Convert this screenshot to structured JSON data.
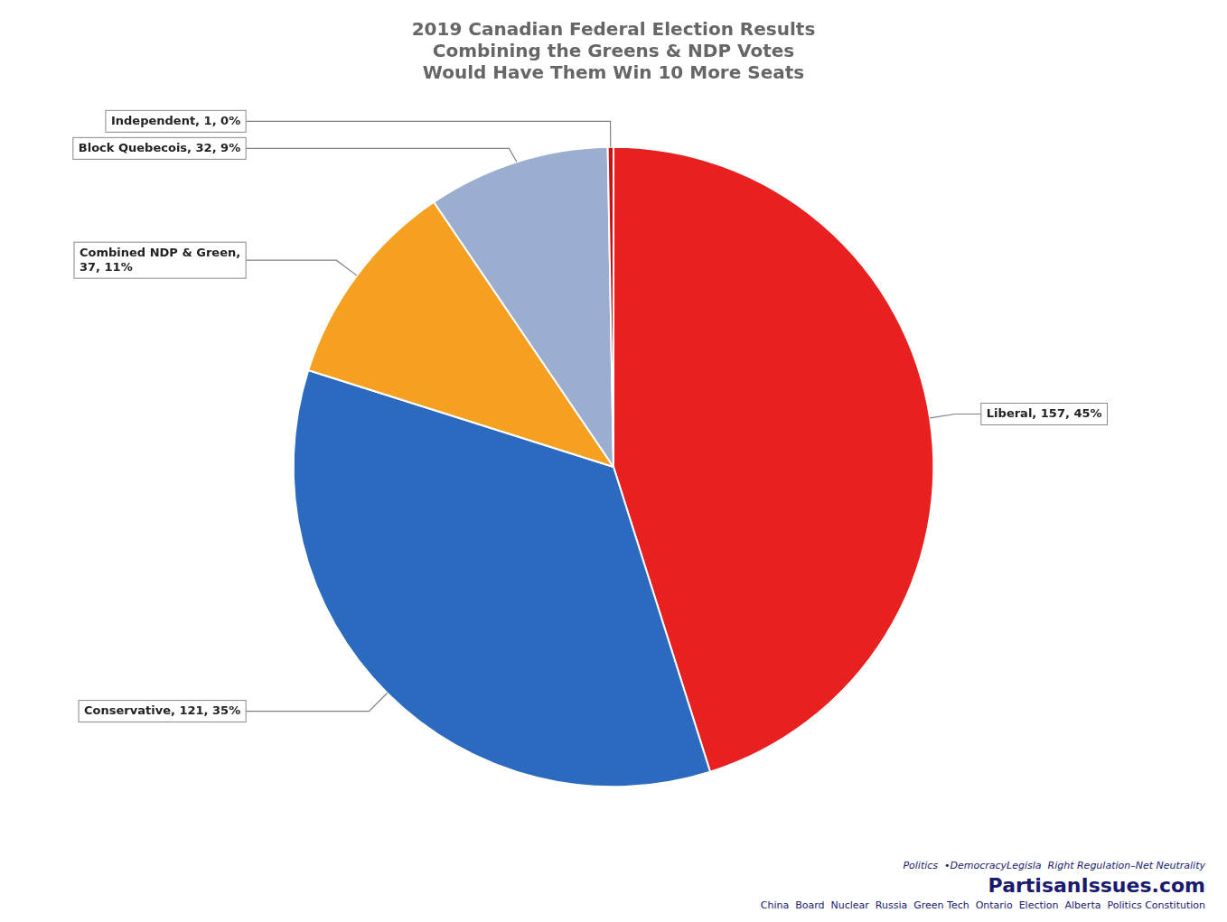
{
  "chart_data": {
    "type": "pie",
    "title": [
      "2019 Canadian Federal Election Results",
      "Combining the Greens & NDP Votes",
      "Would Have Them Win 10 More Seats"
    ],
    "categories": [
      "Liberal",
      "Conservative",
      "Combined NDP & Green",
      "Block Quebecois",
      "Independent"
    ],
    "values": [
      157,
      121,
      37,
      32,
      1
    ],
    "colors": [
      "#e82020",
      "#2b6abf",
      "#f5a020",
      "#9baed0",
      "#cc1111"
    ],
    "data_labels": true,
    "value_labels": [
      "Liberal, 157, 45%",
      "Conservative, 121, 35%",
      "Combined NDP & Green,\n37, 11%",
      "Block Quebecois, 32, 9%",
      "Independent, 1, 0%"
    ],
    "legend": false,
    "annotations": [
      "Politics  •DemocracyLegisla  Right Regulation–Net Neutrality",
      "PartisanIssues.com",
      "China  Board  Nuclear  Russia  Green Tech  Ontario  Election  Alberta  Politics Constitution"
    ]
  }
}
